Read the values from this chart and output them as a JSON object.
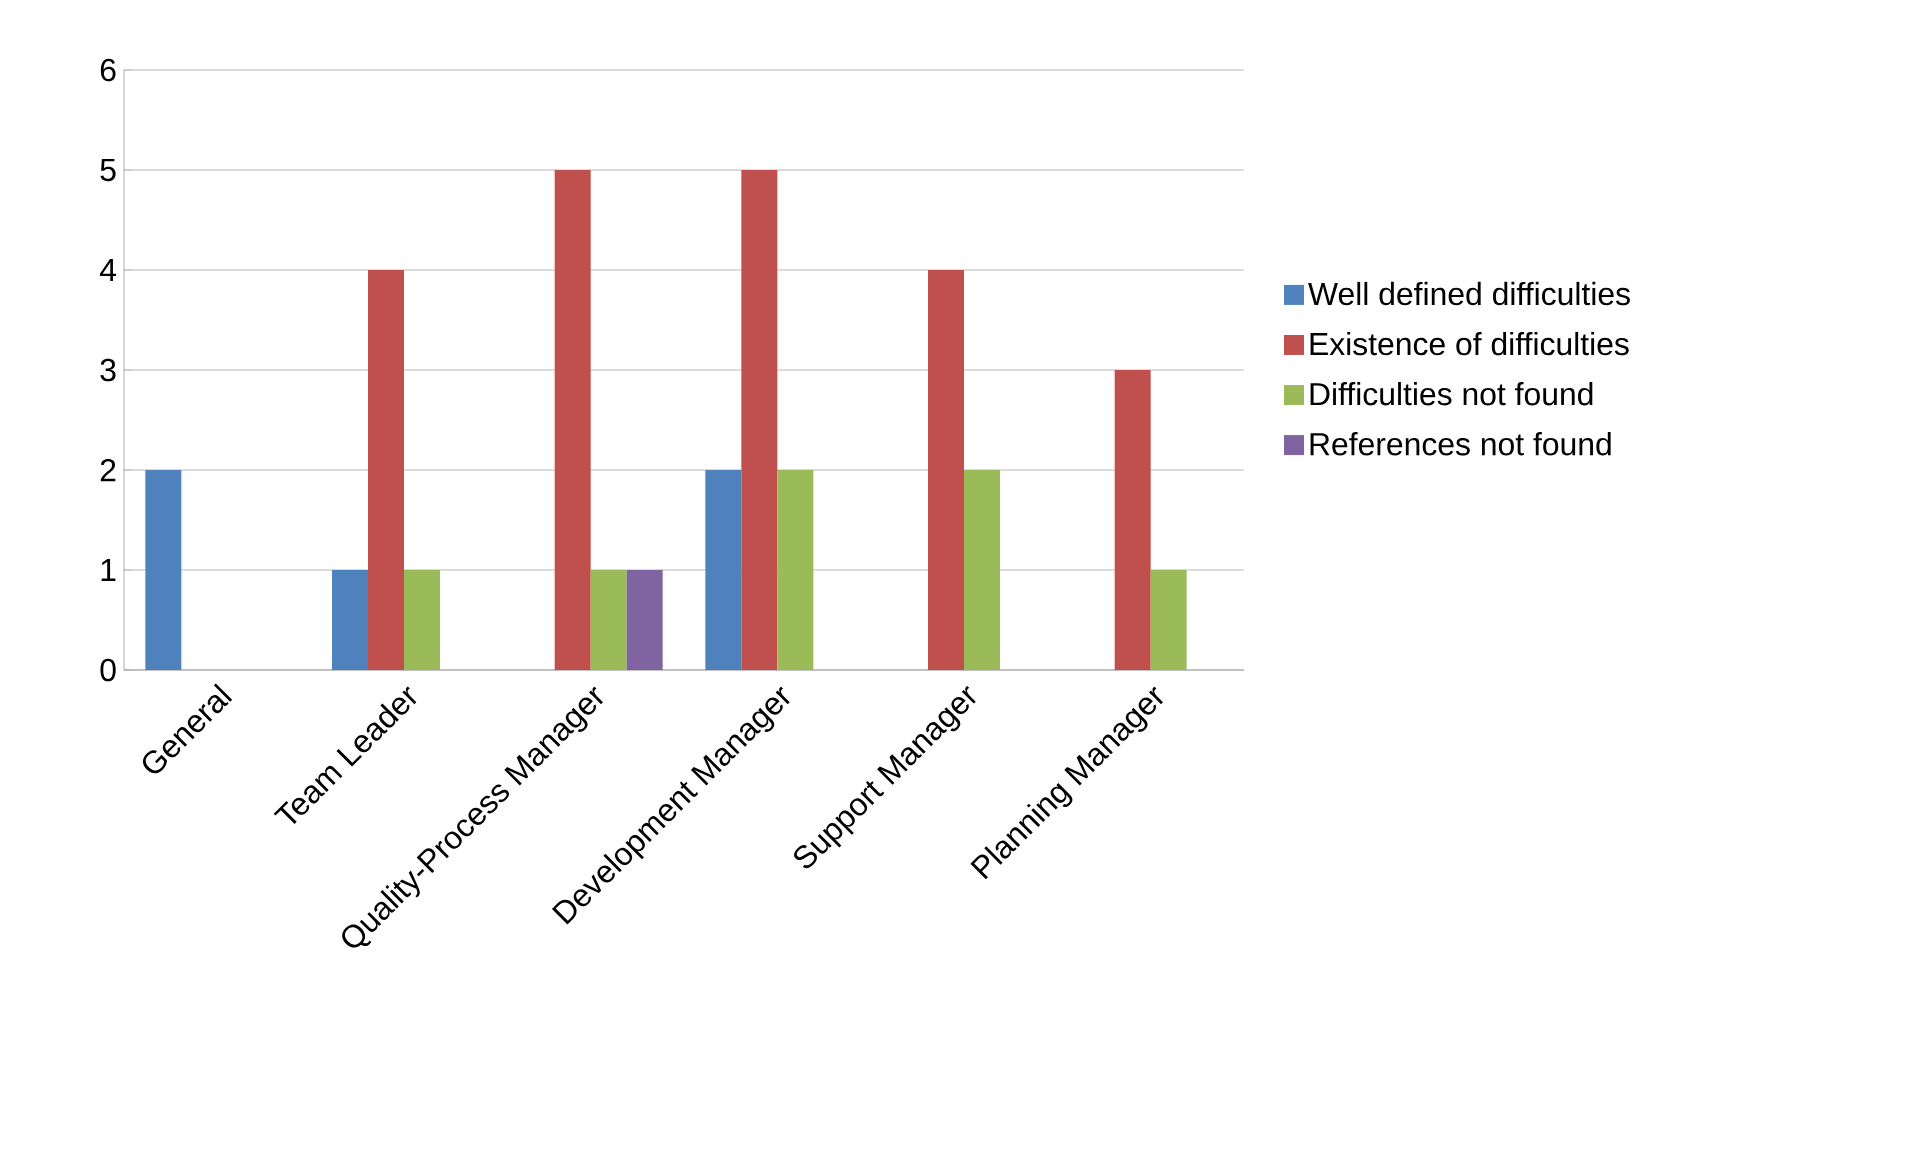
{
  "chart_data": {
    "type": "bar",
    "categories": [
      "General",
      "Team Leader",
      "Quality-Process Manager",
      "Development Manager",
      "Support Manager",
      "Planning Manager"
    ],
    "series": [
      {
        "name": "Well defined difficulties",
        "color": "#4f81bd",
        "values": [
          2,
          1,
          0,
          2,
          0,
          0
        ]
      },
      {
        "name": "Existence of difficulties",
        "color": "#c0504d",
        "values": [
          0,
          4,
          5,
          5,
          4,
          3
        ]
      },
      {
        "name": "Difficulties not found",
        "color": "#9bbb59",
        "values": [
          0,
          1,
          1,
          2,
          2,
          1
        ]
      },
      {
        "name": "References not found",
        "color": "#8064a2",
        "values": [
          0,
          0,
          1,
          0,
          0,
          0
        ]
      }
    ],
    "ylim": [
      0,
      6
    ],
    "yticks": [
      0,
      1,
      2,
      3,
      4,
      5,
      6
    ],
    "grid": "y",
    "legend": "right"
  }
}
